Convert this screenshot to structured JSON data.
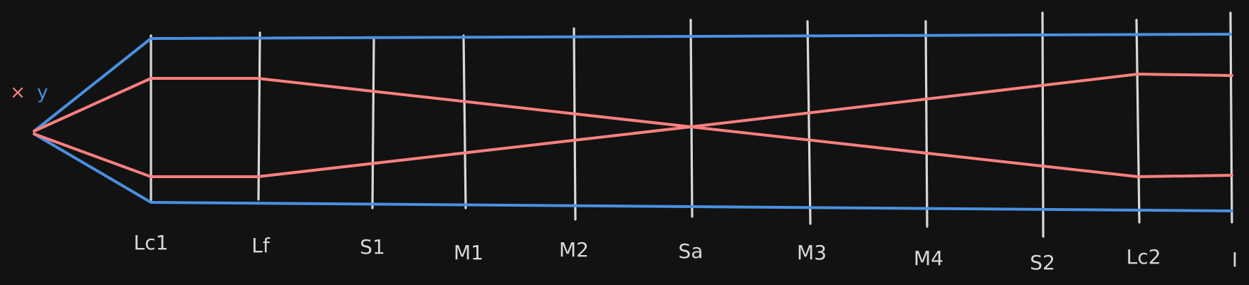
{
  "colors": {
    "background": "#121212",
    "x_ray": "#ff8080",
    "y_ray": "#4a90e2",
    "element": "#d8d8d8",
    "label": "#d8d8d8"
  },
  "legend": {
    "x_symbol": "×",
    "y_symbol": "y"
  },
  "elements": [
    {
      "key": "lc1",
      "label": "Lc1"
    },
    {
      "key": "lf",
      "label": "Lf"
    },
    {
      "key": "s1",
      "label": "S1"
    },
    {
      "key": "m1",
      "label": "M1"
    },
    {
      "key": "m2",
      "label": "M2"
    },
    {
      "key": "sa",
      "label": "Sa"
    },
    {
      "key": "m3",
      "label": "M3"
    },
    {
      "key": "m4",
      "label": "M4"
    },
    {
      "key": "s2",
      "label": "S2"
    },
    {
      "key": "lc2",
      "label": "Lc2"
    },
    {
      "key": "i",
      "label": "I"
    }
  ]
}
